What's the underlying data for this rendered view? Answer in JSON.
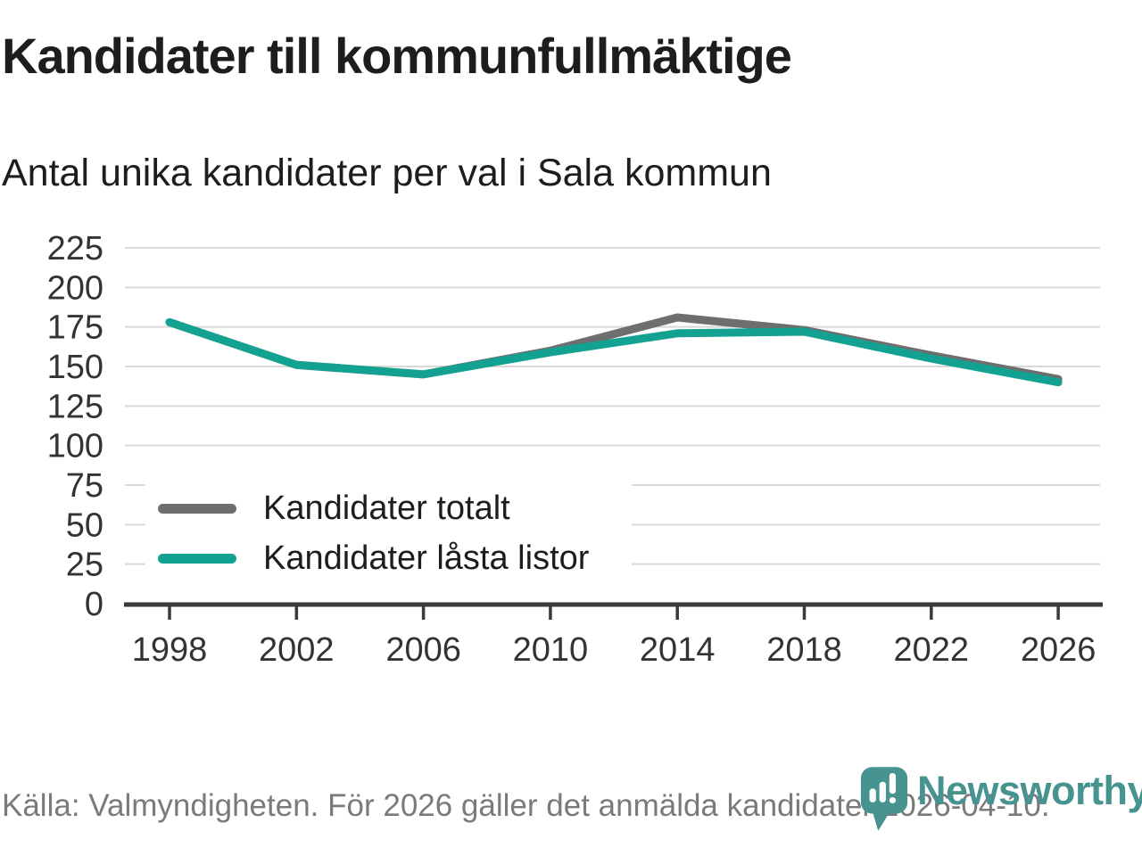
{
  "title": "Kandidater till kommunfullmäktige",
  "subtitle": "Antal unika kandidater per val i Sala kommun",
  "source": "Källa: Valmyndigheten. För 2026 gäller det anmälda kandidater 2026-04-10.",
  "brand": {
    "name": "Newsworthy",
    "color": "#479390",
    "icon": "newsworthy-pin-barchart"
  },
  "colors": {
    "series_total": "#6e6e6e",
    "series_locked": "#13a292",
    "grid": "#d9d9d9",
    "axis": "#3a3a3a",
    "tick_text": "#333333",
    "text": "#1d1d1b",
    "muted_text": "#7a7a7a"
  },
  "chart_data": {
    "type": "line",
    "title": "Kandidater till kommunfullmäktige",
    "subtitle": "Antal unika kandidater per val i Sala kommun",
    "categories": [
      1998,
      2002,
      2006,
      2010,
      2014,
      2018,
      2022,
      2026
    ],
    "series": [
      {
        "name": "Kandidater totalt",
        "color": "#6e6e6e",
        "values": [
          178,
          151,
          145,
          160,
          181,
          173,
          157,
          142
        ]
      },
      {
        "name": "Kandidater låsta listor",
        "color": "#13a292",
        "values": [
          178,
          151,
          145,
          159,
          171,
          172,
          155,
          140
        ]
      }
    ],
    "xlabel": "",
    "ylabel": "",
    "ylim": [
      0,
      225
    ],
    "yticks": [
      0,
      25,
      50,
      75,
      100,
      125,
      150,
      175,
      200,
      225
    ],
    "grid": "horizontal",
    "legend_position": "inside-bottom-left"
  }
}
